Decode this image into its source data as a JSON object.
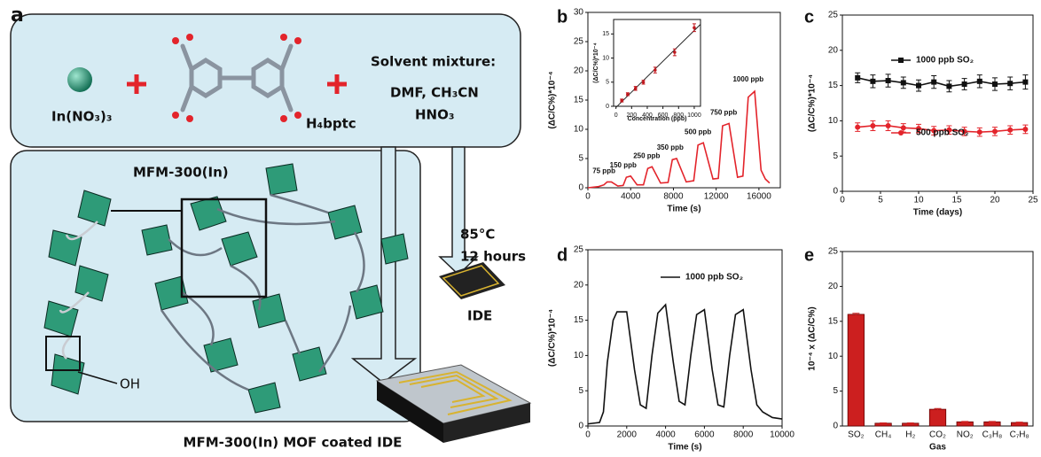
{
  "panel_a": {
    "label": "a",
    "metal": "In(NO₃)₃",
    "linker": "H₄bptc",
    "solvent_title": "Solvent mixture:",
    "solvent_1": "DMF, CH₃CN",
    "solvent_2": "HNO₃",
    "mof_name": "MFM-300(In)",
    "hydroxyl": "OH",
    "temperature": "85°C",
    "duration": "12 hours",
    "ide": "IDE",
    "caption": "MFM-300(In) MOF coated IDE"
  },
  "chart_data": [
    {
      "type": "line",
      "label": "b",
      "xlabel": "Time (s)",
      "ylabel": "(ΔC/C%)*10⁻⁴",
      "x": [
        0,
        1000,
        1500,
        1800,
        2200,
        2800,
        3300,
        3600,
        4000,
        4600,
        5200,
        5600,
        6000,
        6800,
        7500,
        7900,
        8300,
        9200,
        9900,
        10300,
        10800,
        11700,
        12200,
        12600,
        13200,
        14000,
        14500,
        15000,
        15600,
        16200,
        16600,
        17000
      ],
      "series": [
        {
          "color": "#e3242b",
          "values": [
            0,
            0.2,
            0.5,
            1.0,
            1.0,
            0.3,
            0.4,
            1.8,
            2.0,
            0.5,
            0.5,
            3.3,
            3.6,
            0.8,
            0.9,
            4.8,
            5.0,
            1.0,
            1.2,
            7.3,
            7.7,
            1.5,
            1.6,
            10.6,
            11.0,
            1.8,
            2.0,
            15.5,
            16.5,
            3.0,
            1.5,
            0.8
          ]
        }
      ],
      "xlim": [
        0,
        18000
      ],
      "xticks": [
        0,
        4000,
        8000,
        12000,
        16000
      ],
      "ylim": [
        0,
        30
      ],
      "yticks": [
        0,
        5,
        10,
        15,
        20,
        25,
        30
      ],
      "annotations": [
        "75 ppb",
        "150 ppb",
        "250 ppb",
        "350 ppb",
        "500 ppb",
        "750 ppb",
        "1000 ppb"
      ]
    },
    {
      "type": "scatter",
      "xlabel": "Concentration (ppb)",
      "ylabel": "(ΔC/C%)*10⁻⁴",
      "x": [
        75,
        150,
        250,
        350,
        500,
        750,
        1000
      ],
      "series": [
        {
          "color": "#c0181e",
          "values": [
            1.2,
            2.5,
            3.7,
            5.0,
            7.5,
            11.2,
            16.3
          ],
          "errors": [
            0.3,
            0.3,
            0.4,
            0.4,
            0.6,
            0.7,
            0.8
          ]
        }
      ],
      "fit": true,
      "fit_color": "#222222",
      "xlim": [
        -30,
        1080
      ],
      "xticks": [
        0,
        200,
        400,
        600,
        800,
        1000
      ],
      "ylim": [
        0,
        18
      ],
      "yticks": [
        0,
        5,
        10,
        15
      ]
    },
    {
      "type": "line",
      "label": "c",
      "xlabel": "Time (days)",
      "ylabel": "(ΔC/C%)*10⁻⁴",
      "x": [
        2,
        4,
        6,
        8,
        10,
        12,
        14,
        16,
        18,
        20,
        22,
        24
      ],
      "series": [
        {
          "name": "1000 ppb  SO₂",
          "color": "#111111",
          "marker": "square",
          "values": [
            16.1,
            15.6,
            15.7,
            15.4,
            15.0,
            15.5,
            14.9,
            15.2,
            15.6,
            15.2,
            15.3,
            15.5
          ],
          "errors": [
            0.7,
            0.9,
            0.9,
            0.8,
            0.8,
            0.9,
            0.8,
            0.8,
            0.9,
            0.9,
            0.9,
            1.0
          ]
        },
        {
          "name": "500 ppb  SO₂",
          "color": "#e3242b",
          "marker": "circle",
          "values": [
            9.1,
            9.3,
            9.3,
            9.0,
            8.9,
            8.6,
            8.7,
            8.5,
            8.4,
            8.5,
            8.7,
            8.8
          ],
          "errors": [
            0.6,
            0.7,
            0.7,
            0.6,
            0.6,
            0.6,
            0.6,
            0.6,
            0.6,
            0.6,
            0.6,
            0.6
          ]
        }
      ],
      "xlim": [
        0,
        25
      ],
      "xticks": [
        0,
        5,
        10,
        15,
        20,
        25
      ],
      "ylim": [
        0,
        25
      ],
      "yticks": [
        0,
        5,
        10,
        15,
        20,
        25
      ]
    },
    {
      "type": "line",
      "label": "d",
      "xlabel": "Time (s)",
      "ylabel": "(ΔC/C%)*10⁻⁴",
      "x": [
        0,
        600,
        800,
        1000,
        1300,
        1500,
        2000,
        2400,
        2700,
        3000,
        3300,
        3600,
        4000,
        4400,
        4700,
        5000,
        5300,
        5600,
        6000,
        6400,
        6700,
        7000,
        7300,
        7600,
        8000,
        8400,
        8700,
        9000,
        9500,
        10000
      ],
      "series": [
        {
          "name": "1000 ppb  SO₂",
          "color": "#111111",
          "values": [
            0.3,
            0.5,
            2,
            9,
            15,
            16.2,
            16.2,
            8,
            3,
            2.5,
            10,
            16,
            17.2,
            9,
            3.5,
            3,
            10,
            15.8,
            16.5,
            8,
            3,
            2.7,
            10,
            15.8,
            16.5,
            8,
            3,
            2.0,
            1.2,
            1.0
          ]
        }
      ],
      "xlim": [
        0,
        10000
      ],
      "xticks": [
        0,
        2000,
        4000,
        6000,
        8000,
        10000
      ],
      "ylim": [
        0,
        25
      ],
      "yticks": [
        0,
        5,
        10,
        15,
        20,
        25
      ]
    },
    {
      "type": "bar",
      "label": "e",
      "xlabel": "Gas",
      "ylabel": "10⁻⁴ x (ΔC/C%)",
      "categories": [
        "SO₂",
        "CH₄",
        "H₂",
        "CO₂",
        "NO₂",
        "C₃H₈",
        "C₇H₈"
      ],
      "series": [
        {
          "color": "#cc1f1f",
          "values": [
            16.0,
            0.4,
            0.4,
            2.4,
            0.6,
            0.6,
            0.5
          ],
          "errors": [
            0.15,
            0.05,
            0.05,
            0.1,
            0.05,
            0.05,
            0.05
          ]
        }
      ],
      "ylim": [
        0,
        25
      ],
      "yticks": [
        0,
        5,
        10,
        15,
        20,
        25
      ]
    }
  ]
}
